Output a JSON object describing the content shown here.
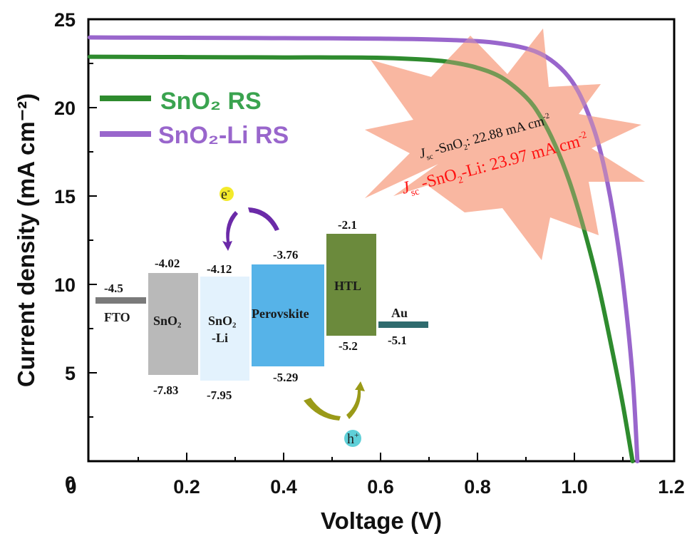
{
  "chart_data": {
    "type": "line",
    "title": "",
    "xlabel": "Voltage (V)",
    "ylabel": "Current density (mA cm⁻²)",
    "xlim": [
      0,
      1.2
    ],
    "ylim": [
      0,
      25
    ],
    "x_ticks": [
      0,
      0.2,
      0.4,
      0.6,
      0.8,
      1.0,
      1.2
    ],
    "x_tick_labels": [
      "0",
      "0.2",
      "0.4",
      "0.6",
      "0.8",
      "1.0",
      "1.2"
    ],
    "y_ticks": [
      0,
      5,
      10,
      15,
      20,
      25
    ],
    "y_tick_labels": [
      "0",
      "5",
      "10",
      "15",
      "20",
      "25"
    ],
    "grid": false,
    "legend_position": "top-left",
    "series": [
      {
        "name": "SnO₂ RS",
        "color": "#2e8b2e",
        "legend_color": "#3aa34f",
        "x": [
          0,
          0.1,
          0.2,
          0.3,
          0.4,
          0.5,
          0.6,
          0.7,
          0.75,
          0.8,
          0.85,
          0.9,
          0.93,
          0.96,
          0.99,
          1.02,
          1.05,
          1.08,
          1.1,
          1.12
        ],
        "y": [
          22.88,
          22.87,
          22.86,
          22.85,
          22.84,
          22.84,
          22.82,
          22.7,
          22.55,
          22.25,
          21.7,
          20.6,
          19.5,
          17.9,
          15.8,
          13.1,
          9.9,
          6.0,
          3.2,
          0
        ]
      },
      {
        "name": "SnO₂-Li RS",
        "color": "#9966cc",
        "legend_color": "#9966cc",
        "x": [
          0,
          0.1,
          0.2,
          0.3,
          0.4,
          0.5,
          0.6,
          0.7,
          0.8,
          0.85,
          0.9,
          0.94,
          0.98,
          1.01,
          1.04,
          1.06,
          1.08,
          1.1,
          1.12,
          1.13
        ],
        "y": [
          23.97,
          23.96,
          23.95,
          23.94,
          23.93,
          23.92,
          23.9,
          23.86,
          23.76,
          23.62,
          23.35,
          22.9,
          22.0,
          20.8,
          18.8,
          16.8,
          14.0,
          10.2,
          4.8,
          0
        ]
      }
    ],
    "annotations": {
      "jsc_sno2_prefix": "J",
      "jsc_sno2_sub": "sc",
      "jsc_sno2_text": " -SnO",
      "jsc_sno2_sub2": "2",
      "jsc_sno2_value": ": 22.88 mA cm",
      "jsc_sno2_sup": "-2",
      "jsc_li_prefix": "J",
      "jsc_li_sub": "sc",
      "jsc_li_text": " -SnO",
      "jsc_li_sub2": "2",
      "jsc_li_value": "-Li: 23.97 mA cm",
      "jsc_li_sup": "-2",
      "starburst_color": "#f9b49f"
    },
    "inset_energy_diagram": {
      "electron_label": "e",
      "electron_sup": "-",
      "hole_label": "h",
      "hole_sup": "+",
      "layers": [
        {
          "name": "FTO",
          "top": -4.5,
          "bottom": -4.5,
          "top_label": "-4.5",
          "color": "#7a7a7a"
        },
        {
          "name": "SnO₂",
          "top": -4.02,
          "bottom": -7.83,
          "top_label": "-4.02",
          "bottom_label": "-7.83",
          "color": "#b9b9b9"
        },
        {
          "name": "SnO₂",
          "name2": "-Li",
          "top": -4.12,
          "bottom": -7.95,
          "top_label": "-4.12",
          "bottom_label": "-7.95",
          "color": "#e3f2fd"
        },
        {
          "name": "Perovskite",
          "top": -3.76,
          "bottom": -5.29,
          "top_label": "-3.76",
          "bottom_label": "-5.29",
          "color": "#56b3e8"
        },
        {
          "name": "HTL",
          "top": -2.1,
          "bottom": -5.2,
          "top_label": "-2.1",
          "bottom_label": "-5.2",
          "color": "#6b8a3c"
        },
        {
          "name": "Au",
          "top": -5.1,
          "bottom": -5.1,
          "bottom_label": "-5.1",
          "color": "#2f6b6e"
        }
      ]
    }
  }
}
